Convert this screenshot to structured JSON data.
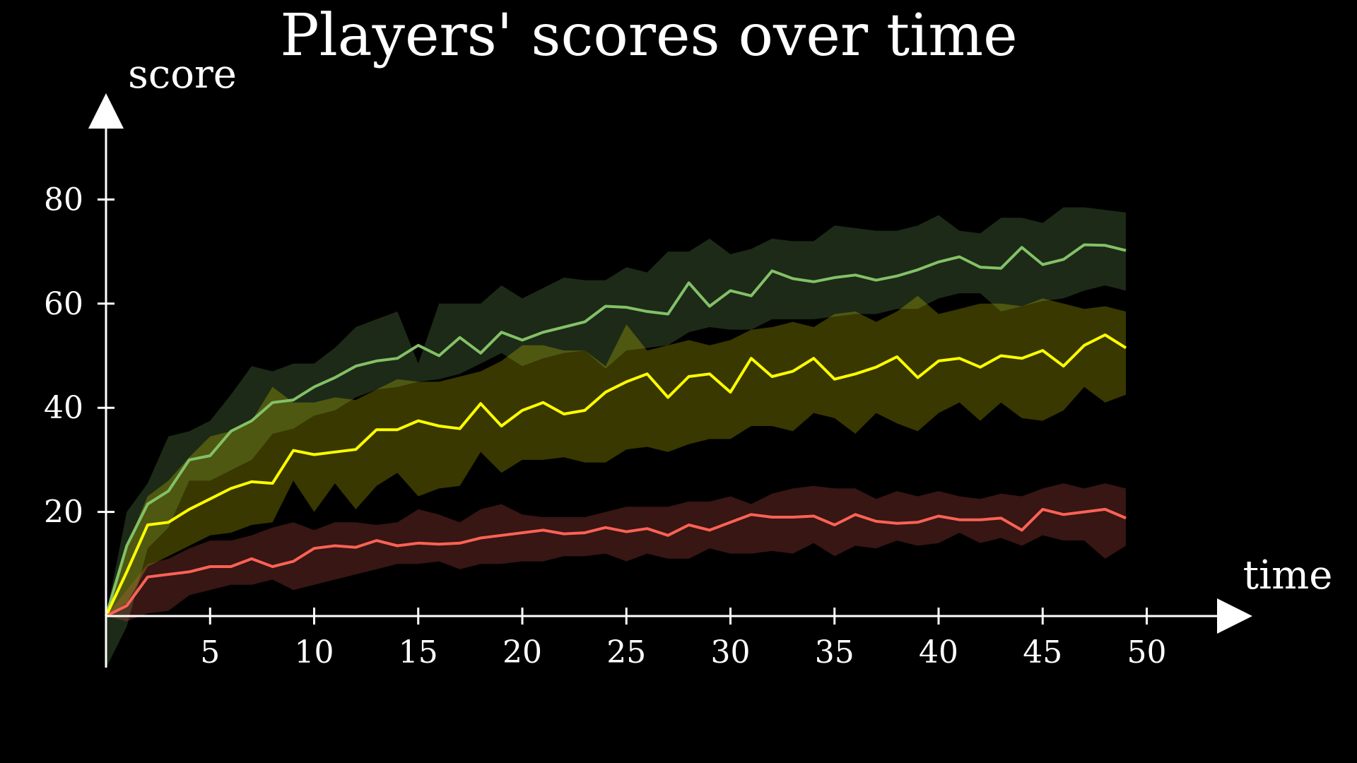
{
  "chart_data": {
    "type": "line",
    "title": "Players' scores over time",
    "xlabel": "time",
    "ylabel": "score",
    "xlim": [
      0,
      55
    ],
    "ylim": [
      0,
      95
    ],
    "xticks": [
      5,
      10,
      15,
      20,
      25,
      30,
      35,
      40,
      45,
      50
    ],
    "yticks": [
      20,
      40,
      60,
      80
    ],
    "grid": false,
    "legend": "none",
    "colors": {
      "background": "#000000",
      "axis": "#ffffff",
      "text": "#ffffff"
    },
    "x": [
      0,
      1,
      2,
      3,
      4,
      5,
      6,
      7,
      8,
      9,
      10,
      11,
      12,
      13,
      14,
      15,
      16,
      17,
      18,
      19,
      20,
      21,
      22,
      23,
      24,
      25,
      26,
      27,
      28,
      29,
      30,
      31,
      32,
      33,
      34,
      35,
      36,
      37,
      38,
      39,
      40,
      41,
      42,
      43,
      44,
      45,
      46,
      47,
      48,
      49
    ],
    "series": [
      {
        "color": "#83c167",
        "band_opacity": 0.22,
        "values": [
          0,
          13.5,
          21.5,
          24,
          30,
          30.8,
          35.5,
          37.5,
          41,
          41.5,
          44,
          45.8,
          48,
          49,
          49.5,
          52,
          50,
          53.5,
          50.5,
          54.5,
          53,
          54.5,
          55.5,
          56.5,
          59.5,
          59.3,
          58.5,
          58,
          64,
          59.5,
          62.5,
          61.5,
          66.3,
          64.8,
          64.2,
          65,
          65.5,
          64.5,
          65.3,
          66.5,
          68,
          69,
          67,
          66.8,
          70.8,
          67.5,
          68.5,
          71.3,
          71.2,
          70.2
        ],
        "upper": [
          0,
          20,
          25.5,
          34.5,
          35.5,
          37.5,
          42.5,
          48,
          47,
          48.5,
          48.5,
          51.5,
          55.5,
          57,
          58.5,
          48.5,
          60,
          60,
          60,
          63.5,
          61,
          63,
          65,
          64.5,
          64.5,
          67,
          66,
          70,
          70,
          72.5,
          69.5,
          70.5,
          72.5,
          72,
          72,
          75,
          74.5,
          74,
          74,
          75,
          77,
          74,
          73.5,
          76.5,
          76.5,
          75.5,
          78.5,
          78.5,
          78,
          77.5
        ],
        "lower": [
          -10,
          -2,
          13,
          17,
          26,
          26,
          28,
          30,
          35,
          36,
          38.5,
          39.5,
          42,
          43.5,
          44,
          45,
          45.5,
          46.5,
          48.5,
          50.5,
          48,
          49.5,
          50.5,
          51,
          47.5,
          51,
          51.5,
          52,
          54.5,
          55.5,
          55,
          55,
          57,
          57,
          57,
          57.5,
          58,
          58,
          59,
          59,
          61,
          62,
          62,
          58.5,
          59.5,
          60.5,
          61,
          62.5,
          63.5,
          62.5
        ]
      },
      {
        "color": "#ffff00",
        "band_opacity": 0.22,
        "values": [
          0,
          8.5,
          17.5,
          18,
          20.5,
          22.5,
          24.5,
          25.8,
          25.5,
          31.8,
          31,
          31.5,
          32,
          35.8,
          35.8,
          37.5,
          36.5,
          36,
          40.8,
          36.5,
          39.5,
          41,
          38.8,
          39.5,
          43,
          45,
          46.5,
          42,
          46,
          46.5,
          43,
          49.5,
          46,
          47,
          49.5,
          45.5,
          46.5,
          47.8,
          49.8,
          45.8,
          49,
          49.5,
          47.8,
          50,
          49.5,
          51,
          48,
          52,
          54,
          51.5
        ],
        "upper": [
          0,
          13.5,
          23,
          26,
          30.5,
          34.5,
          35.5,
          37.5,
          44,
          41,
          41,
          42,
          41.5,
          43.5,
          45.5,
          45,
          45,
          46,
          47,
          49,
          52,
          52,
          51,
          51,
          48,
          56,
          51,
          52,
          53,
          52,
          53,
          55,
          55.5,
          56.5,
          55.5,
          58,
          58.5,
          56.5,
          58.5,
          61.5,
          58,
          59,
          60,
          60,
          59.5,
          61,
          60,
          59,
          59.5,
          58.5
        ],
        "lower": [
          0,
          2.5,
          9.5,
          11.5,
          13.5,
          15.5,
          16,
          17.5,
          18,
          26,
          20,
          25.5,
          20.5,
          25,
          27.5,
          23,
          24.5,
          25,
          31.5,
          27.5,
          30,
          30,
          30.5,
          29.5,
          29.5,
          32,
          32.5,
          31.5,
          33,
          34,
          34,
          36.5,
          36.5,
          35.5,
          39,
          38,
          35,
          39,
          37,
          35.5,
          39,
          41,
          37.5,
          41,
          38,
          37.5,
          39.5,
          44,
          41,
          42.5
        ]
      },
      {
        "color": "#fc6255",
        "band_opacity": 0.22,
        "values": [
          0,
          2,
          7.5,
          8,
          8.5,
          9.5,
          9.5,
          11,
          9.5,
          10.5,
          13,
          13.5,
          13.2,
          14.5,
          13.5,
          14,
          13.8,
          14,
          15,
          15.5,
          16,
          16.5,
          15.8,
          16,
          17,
          16.2,
          16.8,
          15.5,
          17.5,
          16.5,
          18,
          19.5,
          19,
          19,
          19.2,
          17.5,
          19.5,
          18.2,
          17.8,
          18,
          19.2,
          18.5,
          18.5,
          18.8,
          16.5,
          20.5,
          19.5,
          20,
          20.5,
          18.8
        ],
        "upper": [
          0,
          5,
          10,
          11,
          13,
          14.5,
          14.5,
          15.5,
          17,
          18,
          16.5,
          18,
          18,
          17.5,
          18,
          20.5,
          19.5,
          18,
          20.5,
          21.5,
          19.5,
          19,
          19,
          19,
          20,
          21,
          21,
          21,
          22,
          22,
          23,
          21.5,
          23.5,
          24.5,
          25,
          24.5,
          24.5,
          22.5,
          24,
          23,
          24,
          23,
          22.5,
          23.5,
          23,
          24.5,
          25.5,
          24.5,
          25.5,
          24.5
        ],
        "lower": [
          0,
          -1,
          0.5,
          1,
          4,
          5,
          6,
          6,
          7,
          5,
          6,
          7,
          8,
          9,
          10,
          10,
          10.5,
          9,
          10,
          10,
          10.5,
          10.5,
          11.5,
          11.5,
          12,
          10.5,
          12,
          11,
          11,
          13,
          12,
          12,
          12.5,
          12,
          14,
          11.5,
          13.5,
          13,
          14.5,
          13.5,
          14,
          16,
          14,
          15,
          13.5,
          15.5,
          14.5,
          14.5,
          11,
          13.5
        ]
      }
    ]
  }
}
